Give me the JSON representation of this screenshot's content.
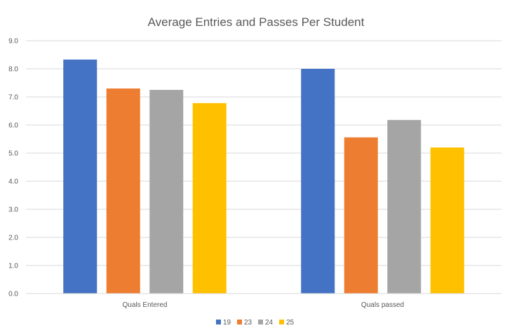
{
  "chart_data": {
    "type": "bar",
    "title": "Average Entries and Passes Per Student",
    "xlabel": "",
    "ylabel": "",
    "categories": [
      "Quals Entered",
      "Quals passed"
    ],
    "series": [
      {
        "name": "19",
        "color": "#4472C4",
        "values": [
          8.33,
          8.0
        ]
      },
      {
        "name": "23",
        "color": "#ED7D31",
        "values": [
          7.3,
          5.56
        ]
      },
      {
        "name": "24",
        "color": "#A5A5A5",
        "values": [
          7.25,
          6.18
        ]
      },
      {
        "name": "25",
        "color": "#FFC000",
        "values": [
          6.78,
          5.2
        ]
      }
    ],
    "ylim": [
      0,
      9
    ],
    "yticks": [
      "0.0",
      "1.0",
      "2.0",
      "3.0",
      "4.0",
      "5.0",
      "6.0",
      "7.0",
      "8.0",
      "9.0"
    ],
    "grid": true,
    "legend": "bottom"
  }
}
